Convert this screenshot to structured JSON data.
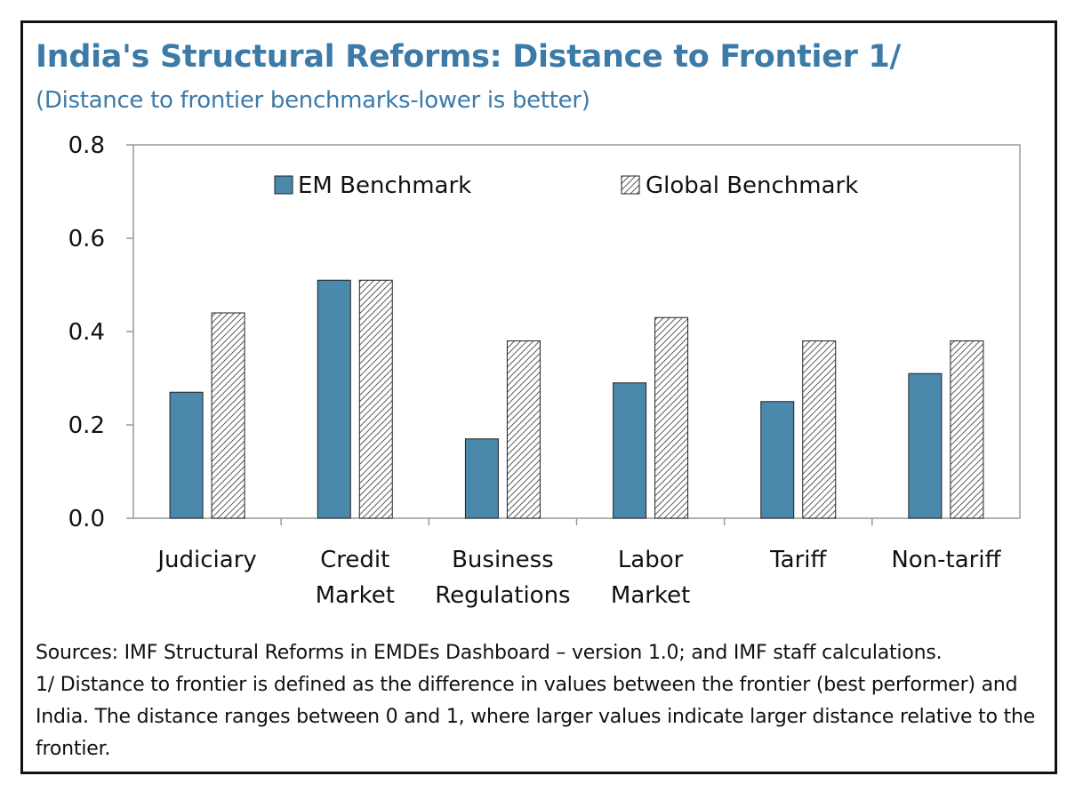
{
  "header": {
    "title": "India's Structural Reforms: Distance to Frontier 1/",
    "subtitle": "(Distance to frontier benchmarks-lower is better)"
  },
  "colors": {
    "title": "#3c7aa8",
    "em_bar": "#4a88ac",
    "global_hatch": "#333333",
    "axis": "#999999"
  },
  "chart_data": {
    "type": "bar",
    "categories": [
      [
        "Judiciary"
      ],
      [
        "Credit",
        "Market"
      ],
      [
        "Business",
        "Regulations"
      ],
      [
        "Labor",
        "Market"
      ],
      [
        "Tariff"
      ],
      [
        "Non-tariff"
      ]
    ],
    "series": [
      {
        "name": "EM Benchmark",
        "pattern": "solid",
        "values": [
          0.27,
          0.51,
          0.17,
          0.29,
          0.25,
          0.31
        ]
      },
      {
        "name": "Global Benchmark",
        "pattern": "hatched",
        "values": [
          0.44,
          0.51,
          0.38,
          0.43,
          0.38,
          0.38
        ]
      }
    ],
    "ylim": [
      0,
      0.8
    ],
    "yticks": [
      "0.0",
      "0.2",
      "0.4",
      "0.6",
      "0.8"
    ],
    "legend_position": "top",
    "grid": false
  },
  "notes": {
    "sources": "Sources: IMF Structural Reforms in EMDEs Dashboard – version 1.0; and IMF staff calculations.",
    "footnote": "1/ Distance to frontier is defined as the difference in values between the frontier (best performer) and India. The distance ranges between 0 and 1, where larger values indicate larger distance relative to the frontier."
  }
}
